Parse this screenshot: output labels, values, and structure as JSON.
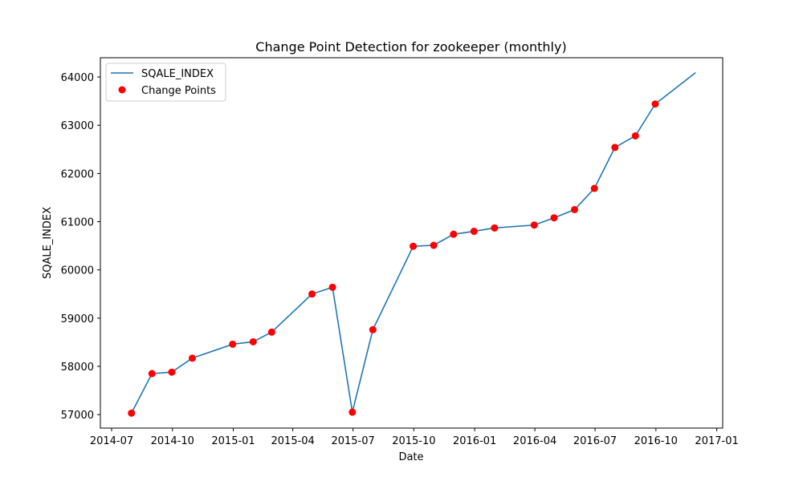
{
  "chart_data": {
    "type": "line",
    "title": "Change Point Detection for zookeeper (monthly)",
    "xlabel": "Date",
    "ylabel": "SQALE_INDEX",
    "x_scale": "date",
    "xlim": [
      "2014-06-14",
      "2017-01-10"
    ],
    "ylim": [
      56720,
      64400
    ],
    "x_ticks": [
      "2014-07-01",
      "2014-10-01",
      "2015-01-01",
      "2015-04-01",
      "2015-07-01",
      "2015-10-01",
      "2016-01-01",
      "2016-04-01",
      "2016-07-01",
      "2016-10-01",
      "2017-01-01"
    ],
    "x_tick_labels": [
      "2014-07",
      "2014-10",
      "2015-01",
      "2015-04",
      "2015-07",
      "2015-10",
      "2016-01",
      "2016-04",
      "2016-07",
      "2016-10",
      "2017-01"
    ],
    "y_ticks": [
      57000,
      58000,
      59000,
      60000,
      61000,
      62000,
      63000,
      64000
    ],
    "y_tick_labels": [
      "57000",
      "58000",
      "59000",
      "60000",
      "61000",
      "62000",
      "63000",
      "64000"
    ],
    "grid": false,
    "legend": {
      "placement": "upper-left",
      "entries": [
        "SQALE_INDEX",
        "Change Points"
      ]
    },
    "series": [
      {
        "name": "SQALE_INDEX",
        "kind": "line",
        "color": "#1f77b4",
        "x": [
          "2014-07-31",
          "2014-08-31",
          "2014-09-30",
          "2014-10-31",
          "2014-12-31",
          "2015-01-31",
          "2015-02-28",
          "2015-04-30",
          "2015-05-31",
          "2015-06-30",
          "2015-07-31",
          "2015-09-30",
          "2015-10-31",
          "2015-11-30",
          "2015-12-31",
          "2016-01-31",
          "2016-03-31",
          "2016-04-30",
          "2016-05-31",
          "2016-06-30",
          "2016-07-31",
          "2016-08-31",
          "2016-09-30",
          "2016-11-30"
        ],
        "y": [
          57030,
          57850,
          57880,
          58170,
          58460,
          58510,
          58710,
          59500,
          59640,
          57050,
          58760,
          60490,
          60510,
          60740,
          60800,
          60870,
          60930,
          61080,
          61250,
          61690,
          62540,
          62780,
          63440,
          64090
        ]
      },
      {
        "name": "Change Points",
        "kind": "scatter",
        "color": "#ff0000",
        "x": [
          "2014-07-31",
          "2014-08-31",
          "2014-09-30",
          "2014-10-31",
          "2014-12-31",
          "2015-01-31",
          "2015-02-28",
          "2015-04-30",
          "2015-05-31",
          "2015-06-30",
          "2015-07-31",
          "2015-09-30",
          "2015-10-31",
          "2015-11-30",
          "2015-12-31",
          "2016-01-31",
          "2016-03-31",
          "2016-04-30",
          "2016-05-31",
          "2016-06-30",
          "2016-07-31",
          "2016-08-31",
          "2016-09-30"
        ],
        "y": [
          57030,
          57850,
          57880,
          58170,
          58460,
          58510,
          58710,
          59500,
          59640,
          57050,
          58760,
          60490,
          60510,
          60740,
          60800,
          60870,
          60930,
          61080,
          61250,
          61690,
          62540,
          62780,
          63440
        ]
      }
    ]
  }
}
